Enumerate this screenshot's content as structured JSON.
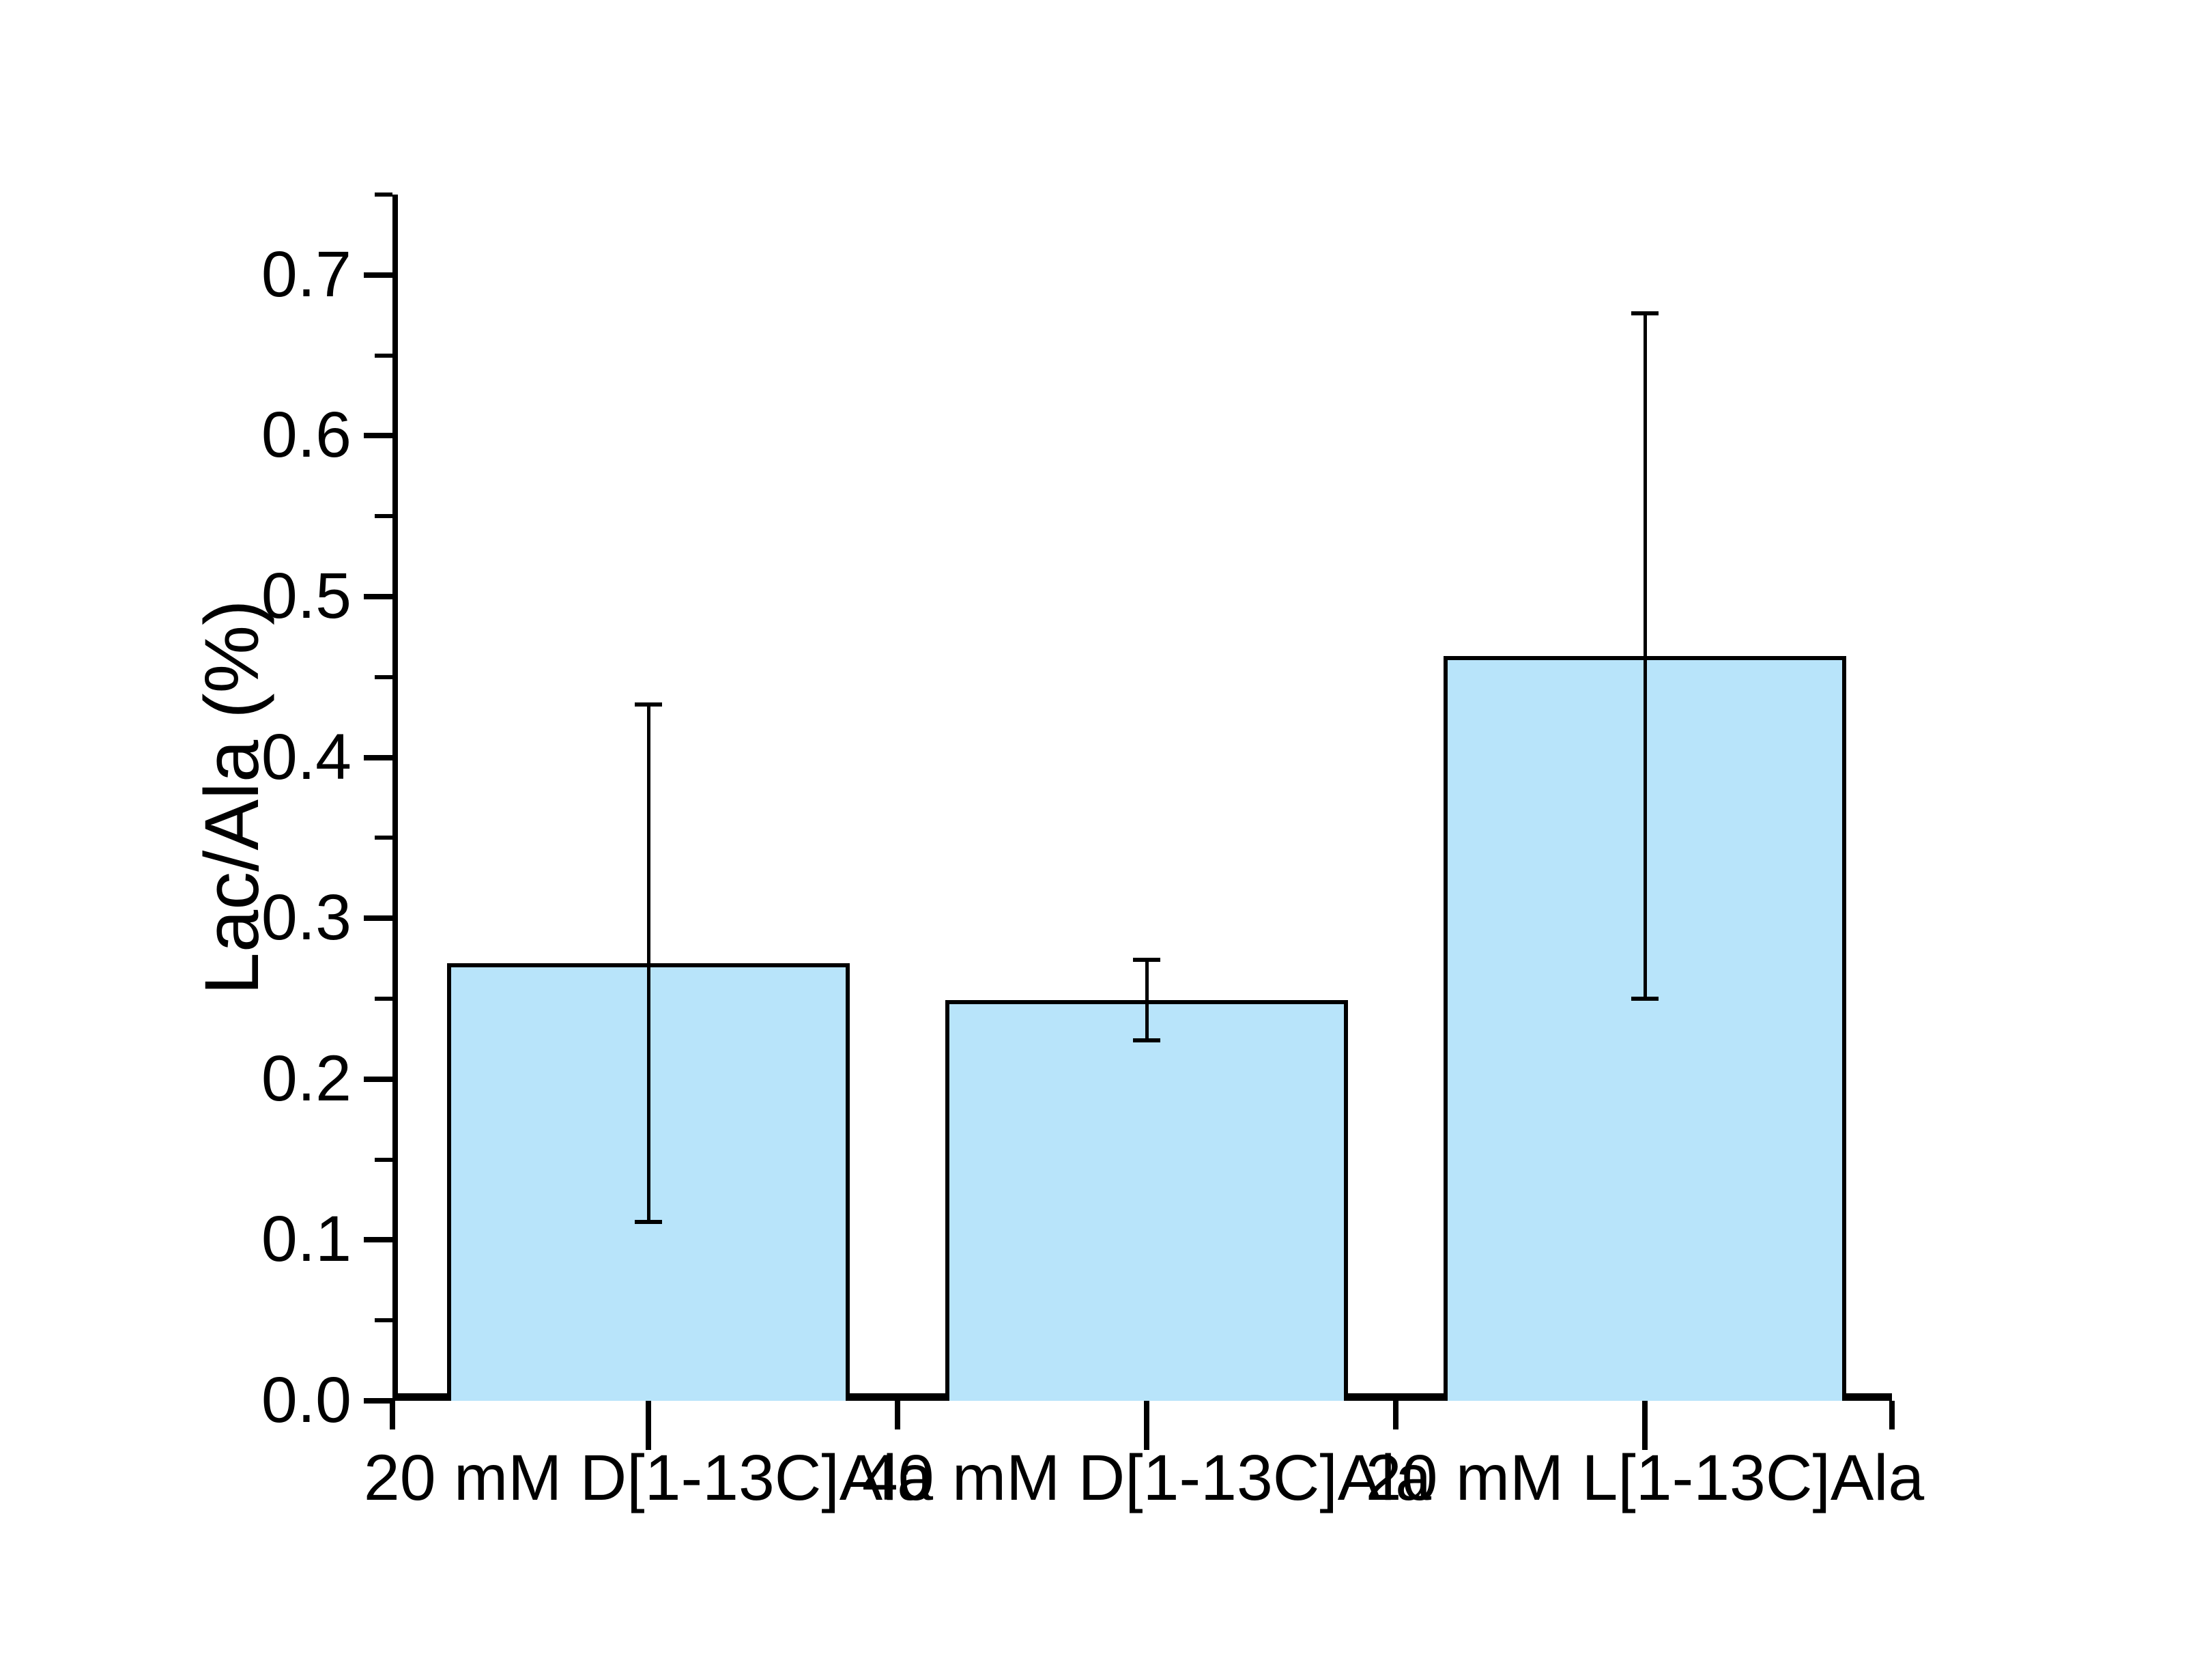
{
  "chart_data": {
    "type": "bar",
    "title": "",
    "ylabel": "Lac/Ala (%)",
    "xlabel": "",
    "categories": [
      "20 mM D[1-13C]Ala",
      "40 mM D[1-13C]Ala",
      "20 mM L[1-13C]Ala"
    ],
    "values": [
      0.272,
      0.249,
      0.463
    ],
    "error_plus": [
      0.161,
      0.025,
      0.213
    ],
    "error_minus": [
      0.161,
      0.025,
      0.213
    ],
    "ylim": [
      0.0,
      0.75
    ],
    "ytick_major_step": 0.1,
    "ytick_minor_step": 0.05,
    "ytick_labels": [
      "0.0",
      "0.1",
      "0.2",
      "0.3",
      "0.4",
      "0.5",
      "0.6",
      "0.7"
    ],
    "grid": "off",
    "legend": "none",
    "bar_fill_color": "#B8E4FA",
    "bar_border_color": "#000000",
    "axis_color": "#000000",
    "error_bar_color": "#000000"
  }
}
